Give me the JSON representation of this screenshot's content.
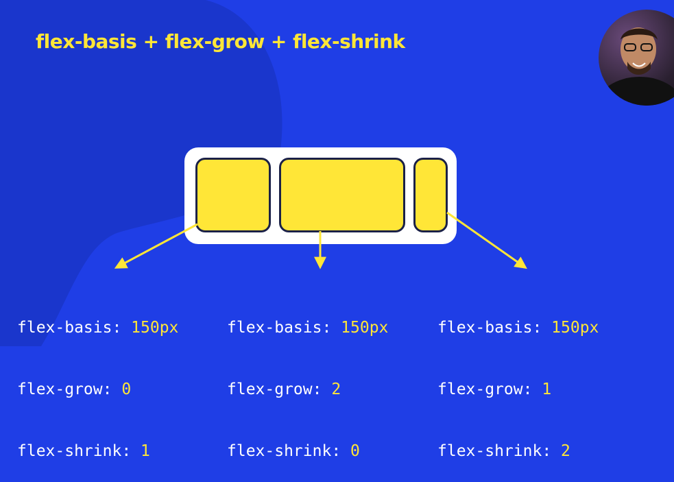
{
  "slide": {
    "title": "flex-basis + flex-grow + flex-shrink"
  },
  "items": [
    {
      "basis_label": "flex-basis: ",
      "basis_value": "150px",
      "grow_label": "flex-grow: ",
      "grow_value": "0",
      "shrink_label": "flex-shrink: ",
      "shrink_value": "1"
    },
    {
      "basis_label": "flex-basis: ",
      "basis_value": "150px",
      "grow_label": "flex-grow: ",
      "grow_value": "2",
      "shrink_label": "flex-shrink: ",
      "shrink_value": "0"
    },
    {
      "basis_label": "flex-basis: ",
      "basis_value": "150px",
      "grow_label": "flex-grow: ",
      "grow_value": "1",
      "shrink_label": "flex-shrink: ",
      "shrink_value": "2"
    }
  ],
  "colors": {
    "background": "#1f3ee6",
    "accent": "#ffe637",
    "item_border": "#1b2147",
    "text": "#ffffff"
  }
}
